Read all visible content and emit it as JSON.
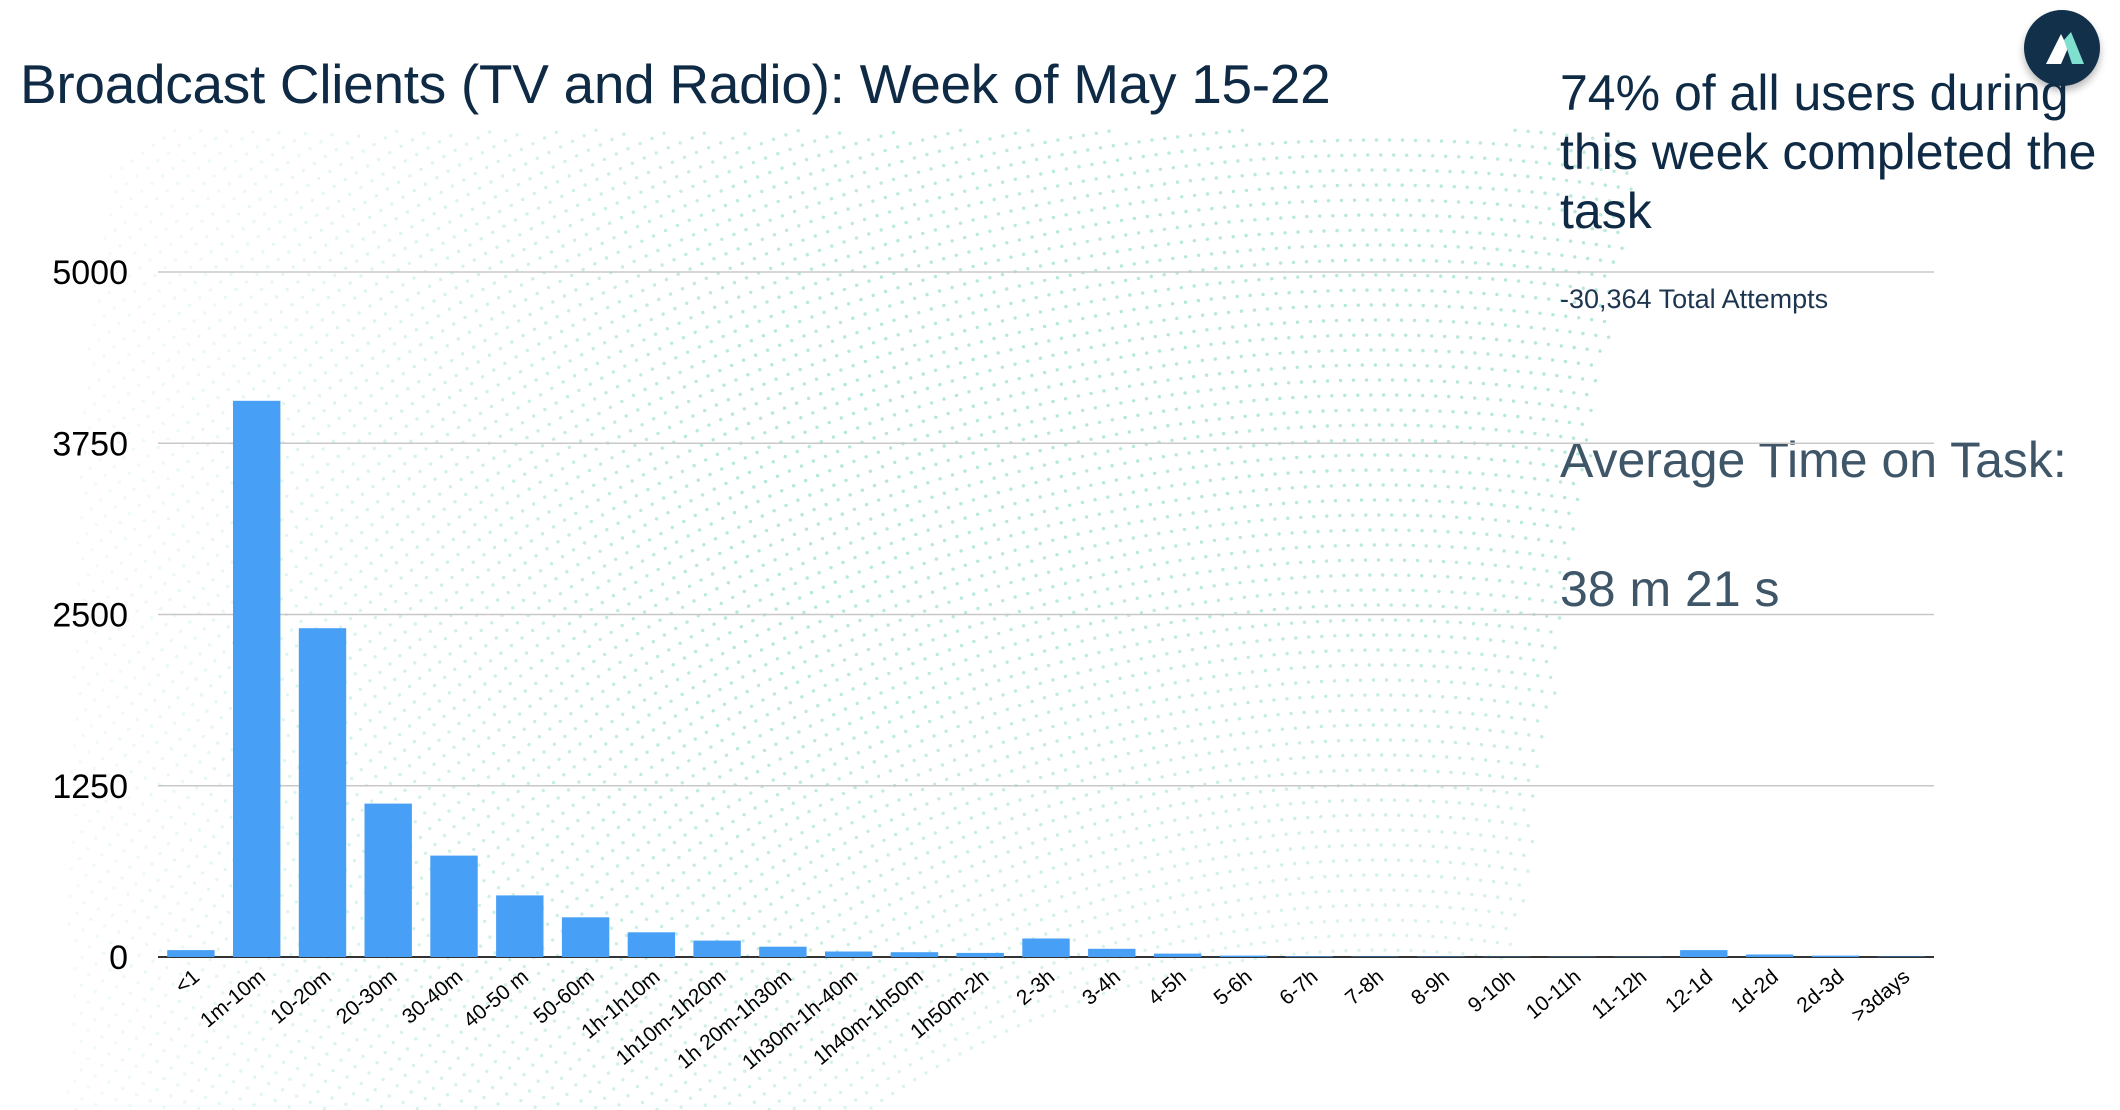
{
  "header": {
    "title": "Broadcast Clients (TV and Radio): Week of May 15-22"
  },
  "summary": {
    "headline": "74% of all users during this week completed the task",
    "attempts": "-30,364 Total Attempts",
    "avg_label": "Average Time on Task:",
    "avg_value": "38 m 21 s"
  },
  "colors": {
    "bar": "#47a0f5",
    "dots": "#7fd6c2",
    "grid": "#c8c8c8",
    "axis": "#333333",
    "logo_bg": "#12304a",
    "logo_mark": "#7fe0d0"
  },
  "logo": {
    "icon": "triangle-logo-icon"
  },
  "chart_data": {
    "type": "bar",
    "title": "Broadcast Clients (TV and Radio): Week of May 15-22",
    "xlabel": "",
    "ylabel": "",
    "ylim": [
      0,
      5000
    ],
    "yticks": [
      0,
      1250,
      2500,
      3750,
      5000
    ],
    "grid": true,
    "categories": [
      "<1",
      "1m-10m",
      "10-20m",
      "20-30m",
      "30-40m",
      "40-50 m",
      "50-60m",
      "1h-1h10m",
      "1h10m-1h20m",
      "1h 20m-1h30m",
      "1h30m-1h-40m",
      "1h40m-1h50m",
      "1h50m-2h",
      "2-3h",
      "3-4h",
      "4-5h",
      "5-6h",
      "6-7h",
      "7-8h",
      "8-9h",
      "9-10h",
      "10-11h",
      "11-12h",
      "12-1d",
      "1d-2d",
      "2d-3d",
      ">3days"
    ],
    "values": [
      50,
      4060,
      2400,
      1120,
      740,
      450,
      290,
      180,
      120,
      75,
      40,
      35,
      30,
      135,
      60,
      25,
      10,
      5,
      3,
      3,
      2,
      2,
      2,
      50,
      18,
      10,
      3
    ]
  }
}
